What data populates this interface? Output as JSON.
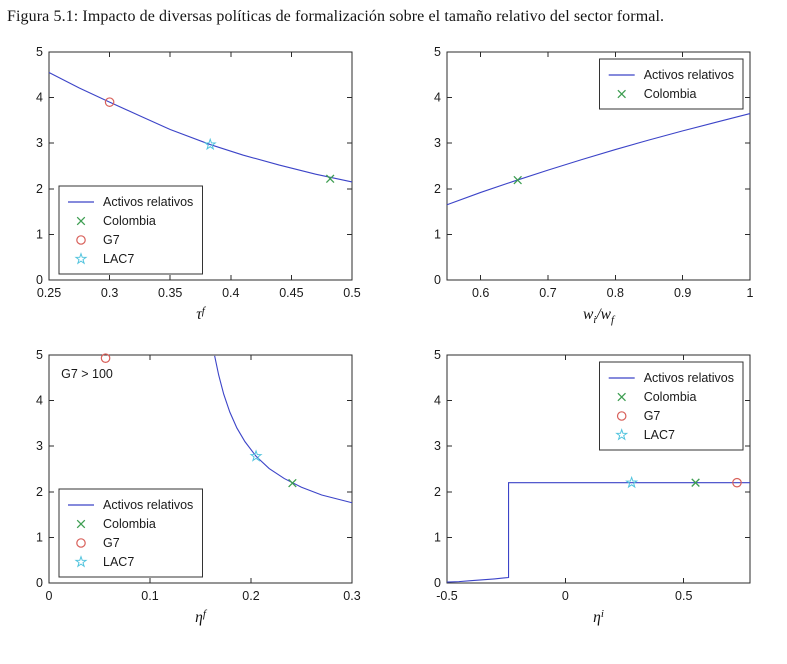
{
  "page": {
    "caption": "Figura 5.1: Impacto de diversas políticas de formalización sobre el tamaño relativo del sector formal."
  },
  "styles": {
    "axis_color": "#2b2b2b",
    "line_color": "#3c44c8",
    "markers": {
      "Colombia": {
        "shape": "x",
        "color": "#3e9e52"
      },
      "G7": {
        "shape": "circle",
        "color": "#d8605a"
      },
      "LAC7": {
        "shape": "star",
        "color": "#52c4de"
      }
    }
  },
  "chart_data": [
    {
      "type": "line",
      "name": "impuesto-formal",
      "xlabel": [
        {
          "text": "τ"
        },
        {
          "text": "f",
          "style": "sup"
        }
      ],
      "xlim": [
        0.25,
        0.5
      ],
      "ylim": [
        0,
        5
      ],
      "grid": false,
      "xticks": [
        {
          "v": 0.25,
          "l": "0.25"
        },
        {
          "v": 0.3,
          "l": "0.3"
        },
        {
          "v": 0.35,
          "l": "0.35"
        },
        {
          "v": 0.4,
          "l": "0.4"
        },
        {
          "v": 0.45,
          "l": "0.45"
        },
        {
          "v": 0.5,
          "l": "0.5"
        }
      ],
      "yticks": [
        {
          "v": 0,
          "l": "0"
        },
        {
          "v": 1,
          "l": "1"
        },
        {
          "v": 2,
          "l": "2"
        },
        {
          "v": 3,
          "l": "3"
        },
        {
          "v": 4,
          "l": "4"
        },
        {
          "v": 5,
          "l": "5"
        }
      ],
      "series": [
        {
          "name": "Activos relativos",
          "x": [
            0.25,
            0.275,
            0.3,
            0.325,
            0.35,
            0.383,
            0.41,
            0.44,
            0.47,
            0.5
          ],
          "y": [
            4.55,
            4.21,
            3.9,
            3.6,
            3.3,
            2.97,
            2.74,
            2.52,
            2.32,
            2.15
          ]
        }
      ],
      "points": [
        {
          "name": "G7",
          "x": 0.3,
          "y": 3.9
        },
        {
          "name": "LAC7",
          "x": 0.383,
          "y": 2.97
        },
        {
          "name": "Colombia",
          "x": 0.482,
          "y": 2.22
        }
      ],
      "legend": {
        "entries": [
          "Activos relativos",
          "Colombia",
          "G7",
          "LAC7"
        ],
        "position": "bottom-left"
      }
    },
    {
      "type": "line",
      "name": "salario-relativo",
      "xlabel": [
        {
          "text": "w"
        },
        {
          "text": "i",
          "style": "sub"
        },
        {
          "text": "/"
        },
        {
          "text": "w"
        },
        {
          "text": "f",
          "style": "sub"
        }
      ],
      "xlim": [
        0.55,
        1
      ],
      "ylim": [
        0,
        5
      ],
      "grid": false,
      "xticks": [
        {
          "v": 0.6,
          "l": "0.6"
        },
        {
          "v": 0.7,
          "l": "0.7"
        },
        {
          "v": 0.8,
          "l": "0.8"
        },
        {
          "v": 0.9,
          "l": "0.9"
        },
        {
          "v": 1,
          "l": "1"
        }
      ],
      "yticks": [
        {
          "v": 0,
          "l": "0"
        },
        {
          "v": 1,
          "l": "1"
        },
        {
          "v": 2,
          "l": "2"
        },
        {
          "v": 3,
          "l": "3"
        },
        {
          "v": 4,
          "l": "4"
        },
        {
          "v": 5,
          "l": "5"
        }
      ],
      "series": [
        {
          "name": "Activos relativos",
          "x": [
            0.55,
            0.6,
            0.65,
            0.7,
            0.75,
            0.8,
            0.85,
            0.9,
            0.95,
            1
          ],
          "y": [
            1.65,
            1.92,
            2.17,
            2.41,
            2.64,
            2.86,
            3.07,
            3.27,
            3.46,
            3.65
          ]
        }
      ],
      "points": [
        {
          "name": "Colombia",
          "x": 0.655,
          "y": 2.19
        }
      ],
      "legend": {
        "entries": [
          "Activos relativos",
          "Colombia"
        ],
        "position": "top-right"
      }
    },
    {
      "type": "line",
      "name": "costo-entrada-formal",
      "xlabel": [
        {
          "text": "η"
        },
        {
          "text": "f",
          "style": "sup"
        }
      ],
      "xlim": [
        0,
        0.3
      ],
      "ylim": [
        0,
        5
      ],
      "grid": false,
      "xticks": [
        {
          "v": 0,
          "l": "0"
        },
        {
          "v": 0.1,
          "l": "0.1"
        },
        {
          "v": 0.2,
          "l": "0.2"
        },
        {
          "v": 0.3,
          "l": "0.3"
        }
      ],
      "yticks": [
        {
          "v": 0,
          "l": "0"
        },
        {
          "v": 1,
          "l": "1"
        },
        {
          "v": 2,
          "l": "2"
        },
        {
          "v": 3,
          "l": "3"
        },
        {
          "v": 4,
          "l": "4"
        },
        {
          "v": 5,
          "l": "5"
        }
      ],
      "series": [
        {
          "name": "Activos relativos",
          "x": [
            0.164,
            0.168,
            0.173,
            0.179,
            0.186,
            0.194,
            0.205,
            0.218,
            0.233,
            0.25,
            0.27,
            0.3
          ],
          "y": [
            4.98,
            4.56,
            4.14,
            3.75,
            3.4,
            3.1,
            2.78,
            2.51,
            2.29,
            2.1,
            1.93,
            1.76
          ]
        }
      ],
      "points": [
        {
          "name": "G7",
          "x": 0.056,
          "y": 4.93
        },
        {
          "name": "LAC7",
          "x": 0.205,
          "y": 2.78
        },
        {
          "name": "Colombia",
          "x": 0.241,
          "y": 2.19
        }
      ],
      "annotation": {
        "text": "G7 > 100",
        "x": 0.012,
        "y": 4.5
      },
      "legend": {
        "entries": [
          "Activos relativos",
          "Colombia",
          "G7",
          "LAC7"
        ],
        "position": "bottom-left"
      }
    },
    {
      "type": "line",
      "name": "costo-entrada-informal",
      "xlabel": [
        {
          "text": "η"
        },
        {
          "text": "i",
          "style": "sup"
        }
      ],
      "xlim": [
        -0.5,
        0.78
      ],
      "ylim": [
        0,
        5
      ],
      "grid": false,
      "xticks": [
        {
          "v": -0.5,
          "l": "-0.5"
        },
        {
          "v": 0,
          "l": "0"
        },
        {
          "v": 0.5,
          "l": "0.5"
        }
      ],
      "yticks": [
        {
          "v": 0,
          "l": "0"
        },
        {
          "v": 1,
          "l": "1"
        },
        {
          "v": 2,
          "l": "2"
        },
        {
          "v": 3,
          "l": "3"
        },
        {
          "v": 4,
          "l": "4"
        },
        {
          "v": 5,
          "l": "5"
        }
      ],
      "series": [
        {
          "name": "Activos relativos",
          "x": [
            -0.5,
            -0.45,
            -0.4,
            -0.35,
            -0.3,
            -0.26,
            -0.24,
            -0.24,
            0.78
          ],
          "y": [
            0.02,
            0.03,
            0.05,
            0.07,
            0.09,
            0.11,
            0.12,
            2.2,
            2.2
          ]
        }
      ],
      "points": [
        {
          "name": "LAC7",
          "x": 0.28,
          "y": 2.2
        },
        {
          "name": "Colombia",
          "x": 0.55,
          "y": 2.2
        },
        {
          "name": "G7",
          "x": 0.725,
          "y": 2.2
        }
      ],
      "legend": {
        "entries": [
          "Activos relativos",
          "Colombia",
          "G7",
          "LAC7"
        ],
        "position": "top-right"
      }
    }
  ]
}
